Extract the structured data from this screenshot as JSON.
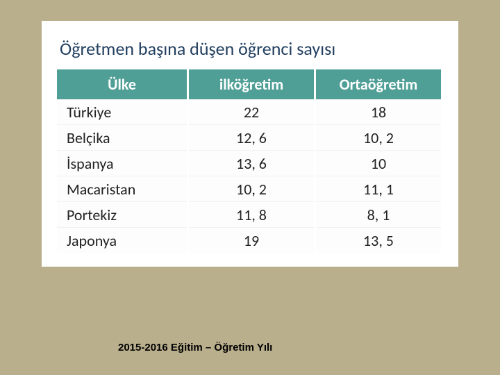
{
  "title": "Öğretmen başına düşen öğrenci sayısı",
  "table": {
    "columns": [
      "Ülke",
      "ilköğretim",
      "Ortaöğretim"
    ],
    "rows": [
      [
        "Türkiye",
        "22",
        "18"
      ],
      [
        "Belçika",
        "12, 6",
        "10, 2"
      ],
      [
        "İspanya",
        "13, 6",
        "10"
      ],
      [
        "Macaristan",
        "10, 2",
        "11, 1"
      ],
      [
        "Portekiz",
        "11, 8",
        "8, 1"
      ],
      [
        "Japonya",
        "19",
        "13, 5"
      ]
    ],
    "header_bg": "#4f9f96",
    "header_color": "#ffffff",
    "title_color": "#234060",
    "cell_fontsize": 22,
    "title_fontsize": 26
  },
  "caption": "2015-2016 Eğitim – Öğretim Yılı",
  "background_color": "#b9af8d"
}
